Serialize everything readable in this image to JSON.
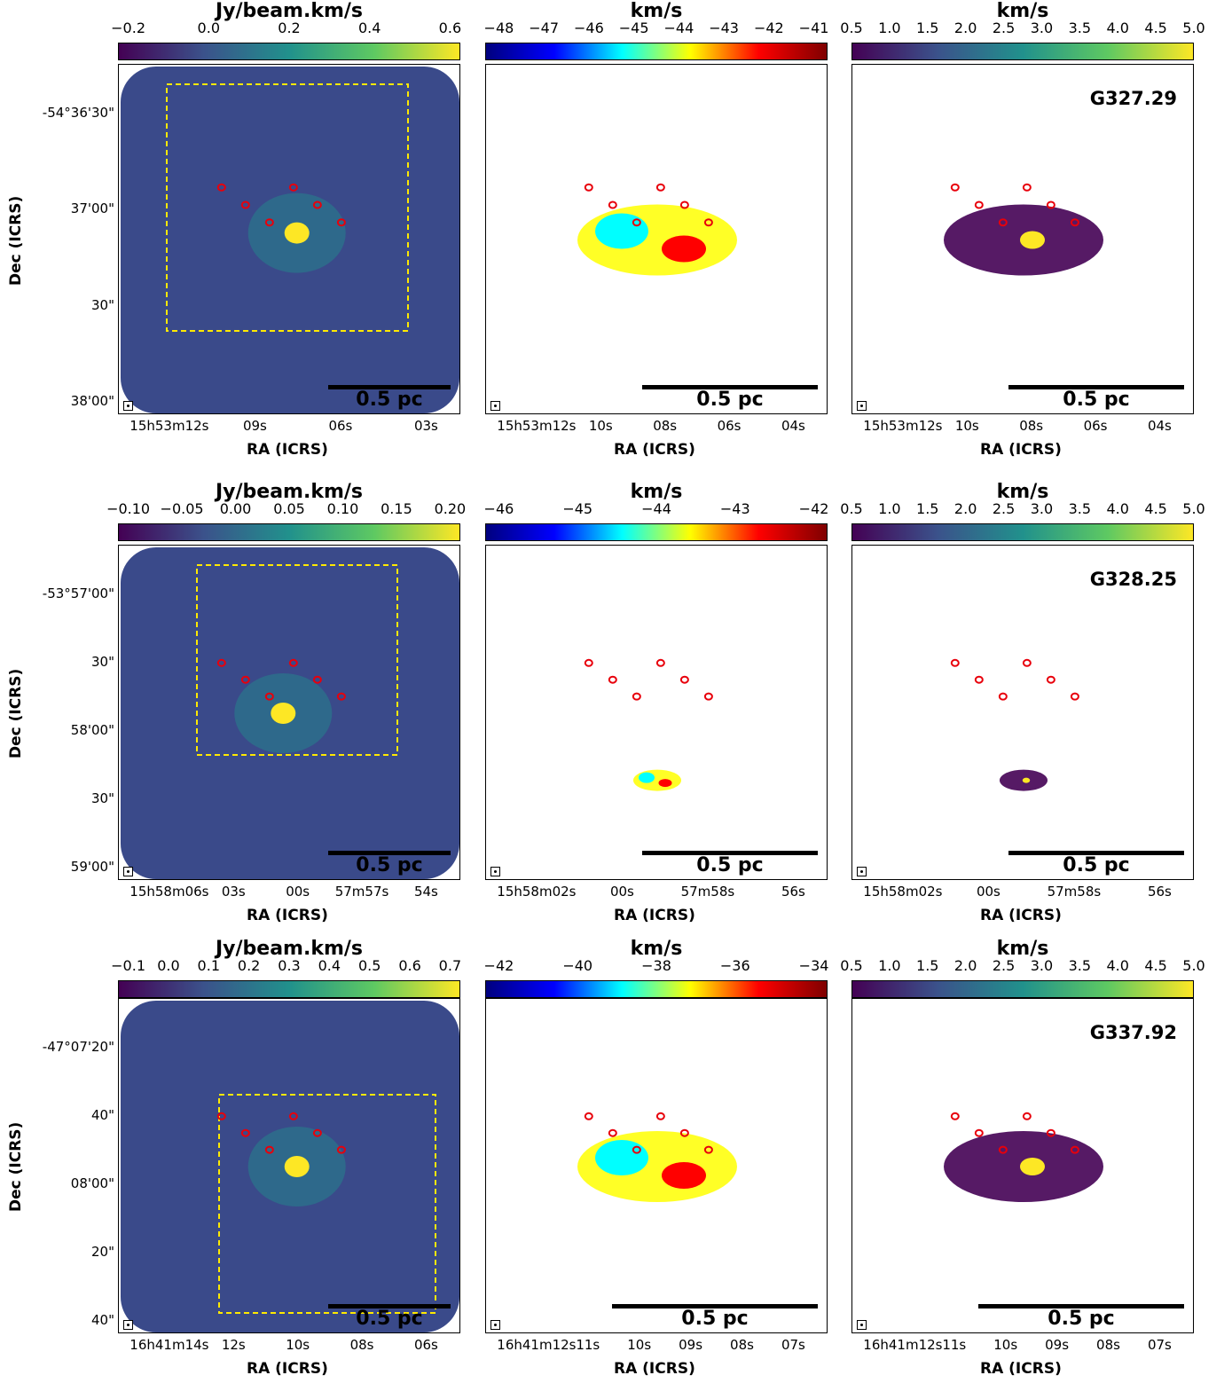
{
  "rows": [
    {
      "source": "G327.29",
      "integ": {
        "cbar_title": "Jy/beam.km/s",
        "cbar_ticks": [
          "−0.2",
          "0.0",
          "0.2",
          "0.4",
          "0.6"
        ],
        "ra_ticks": [
          "15h53m12s",
          "09s",
          "06s",
          "03s"
        ],
        "dec_ticks": [
          "-54°36'30\"",
          "37'00\"",
          "30\"",
          "38'00\""
        ]
      },
      "vel": {
        "cbar_title": "km/s",
        "cbar_ticks": [
          "−48",
          "−47",
          "−46",
          "−45",
          "−44",
          "−43",
          "−42",
          "−41"
        ],
        "ra_ticks": [
          "15h53m12s",
          "10s",
          "08s",
          "06s",
          "04s"
        ]
      },
      "disp": {
        "cbar_title": "km/s",
        "cbar_ticks": [
          "0.5",
          "1.0",
          "1.5",
          "2.0",
          "2.5",
          "3.0",
          "3.5",
          "4.0",
          "4.5",
          "5.0"
        ],
        "ra_ticks": [
          "15h53m12s",
          "10s",
          "08s",
          "06s",
          "04s"
        ]
      }
    },
    {
      "source": "G328.25",
      "integ": {
        "cbar_title": "Jy/beam.km/s",
        "cbar_ticks": [
          "−0.10",
          "−0.05",
          "0.00",
          "0.05",
          "0.10",
          "0.15",
          "0.20"
        ],
        "ra_ticks": [
          "15h58m06s",
          "03s",
          "00s",
          "57m57s",
          "54s"
        ],
        "dec_ticks": [
          "-53°57'00\"",
          "30\"",
          "58'00\"",
          "30\"",
          "59'00\""
        ]
      },
      "vel": {
        "cbar_title": "km/s",
        "cbar_ticks": [
          "−46",
          "−45",
          "−44",
          "−43",
          "−42"
        ],
        "ra_ticks": [
          "15h58m02s",
          "00s",
          "57m58s",
          "56s"
        ]
      },
      "disp": {
        "cbar_title": "km/s",
        "cbar_ticks": [
          "0.5",
          "1.0",
          "1.5",
          "2.0",
          "2.5",
          "3.0",
          "3.5",
          "4.0",
          "4.5",
          "5.0"
        ],
        "ra_ticks": [
          "15h58m02s",
          "00s",
          "57m58s",
          "56s"
        ]
      }
    },
    {
      "source": "G337.92",
      "integ": {
        "cbar_title": "Jy/beam.km/s",
        "cbar_ticks": [
          "−0.1",
          "0.0",
          "0.1",
          "0.2",
          "0.3",
          "0.4",
          "0.5",
          "0.6",
          "0.7"
        ],
        "ra_ticks": [
          "16h41m14s",
          "12s",
          "10s",
          "08s",
          "06s"
        ],
        "dec_ticks": [
          "-47°07'20\"",
          "40\"",
          "08'00\"",
          "20\"",
          "40\""
        ]
      },
      "vel": {
        "cbar_title": "km/s",
        "cbar_ticks": [
          "−42",
          "−40",
          "−38",
          "−36",
          "−34"
        ],
        "ra_ticks": [
          "16h41m12s",
          "11s",
          "10s",
          "09s",
          "08s",
          "07s"
        ]
      },
      "disp": {
        "cbar_title": "km/s",
        "cbar_ticks": [
          "0.5",
          "1.0",
          "1.5",
          "2.0",
          "2.5",
          "3.0",
          "3.5",
          "4.0",
          "4.5",
          "5.0"
        ],
        "ra_ticks": [
          "16h41m12s",
          "11s",
          "10s",
          "09s",
          "08s",
          "07s"
        ]
      }
    }
  ],
  "axes": {
    "xlabel": "RA (ICRS)",
    "ylabel": "Dec (ICRS)"
  },
  "scalebar_label": "0.5 pc",
  "colors": {
    "viridis": [
      "#440154",
      "#3b528b",
      "#21918c",
      "#5ec962",
      "#fde725"
    ],
    "jet": [
      "#00007f",
      "#0000ff",
      "#00ffff",
      "#ffff00",
      "#ff0000",
      "#7f0000"
    ],
    "core_marker": "#e8000b",
    "box": "#ffe900",
    "map_bg": "#3a4a8a"
  }
}
